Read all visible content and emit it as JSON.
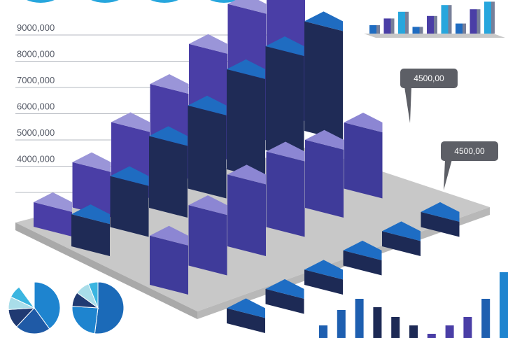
{
  "chart_data": [
    {
      "type": "bar",
      "subtype": "3d-isometric-column",
      "y_tick_labels": [
        "9000,000",
        "8000,000",
        "7000,000",
        "6000,000",
        "5000,000",
        "4000,000",
        ""
      ],
      "annotations": [
        "4500,00",
        "4500,00"
      ],
      "grid": "horizontal-left-only",
      "colors": {
        "back": {
          "front": "#4a3ea6",
          "side": "#6b64bd",
          "top": "#9a95d8"
        },
        "mid": {
          "front": "#1f2b56",
          "side": "#0f3f92",
          "top": "#1f6cc1"
        },
        "front": {
          "front": "#3f3b9a",
          "side": "#5f58b6",
          "top": "#8c86d3"
        },
        "flat": {
          "front": "#1d2a55",
          "side": "#0f3f92",
          "top": "#1e6dc4"
        }
      },
      "rows": [
        {
          "name": "back",
          "heights": [
            1.3,
            2.4,
            3.5,
            4.5,
            5.6,
            6.7,
            7.8
          ]
        },
        {
          "name": "mid",
          "heights": [
            1.7,
            2.7,
            3.8,
            4.4,
            5.3,
            5.5,
            5.8
          ]
        },
        {
          "name": "front",
          "heights": [
            2.6,
            3.2,
            3.8,
            4.0,
            3.6,
            3.5
          ]
        },
        {
          "name": "flat",
          "heights": [
            0.8,
            0.8,
            0.8,
            0.8,
            0.8,
            0.8
          ]
        }
      ]
    },
    {
      "type": "bar",
      "subtype": "mini-3d-decoration",
      "values": [
        1,
        1.8,
        2.6,
        0.8,
        2.1,
        3.4,
        1.2,
        2.9,
        3.8
      ]
    },
    {
      "type": "pie",
      "slices": [
        40,
        22,
        12,
        8,
        8,
        10
      ],
      "colors": [
        "#1e84cf",
        "#1f5aa6",
        "#203a72",
        "#a9dde9",
        "#3bb5e0",
        "#ffffff"
      ]
    },
    {
      "type": "pie",
      "slices": [
        52,
        24,
        9,
        9,
        6
      ],
      "colors": [
        "#1b6ab8",
        "#1e84cf",
        "#203a72",
        "#a9dde9",
        "#3bb5e0"
      ]
    },
    {
      "type": "bar",
      "values": [
        18,
        40,
        56,
        44,
        30,
        18,
        6,
        18,
        30,
        56,
        94
      ],
      "colors": [
        "#1e5fb0",
        "#1e5fb0",
        "#1e5fb0",
        "#1d2a55",
        "#1d2a55",
        "#1d2a55",
        "#4a3ea6",
        "#4a3ea6",
        "#4a3ea6",
        "#1e5fb0",
        "#1e84cf"
      ]
    }
  ]
}
